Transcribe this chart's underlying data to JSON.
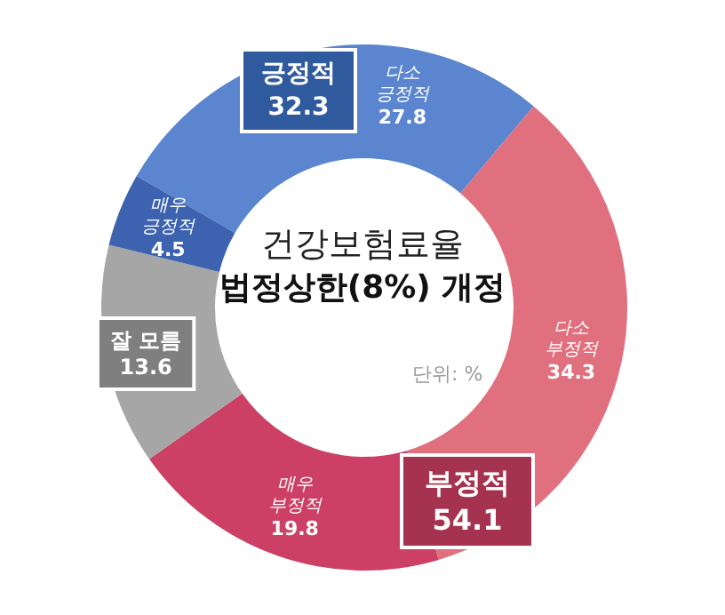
{
  "chart_data": {
    "type": "donut",
    "title": "건강보험료율 법정상한(8%) 개정",
    "categories": [
      "다소 긍정적",
      "다소 부정적",
      "매우 부정적",
      "잘 모름",
      "매우 긍정적"
    ],
    "values": [
      27.8,
      34.3,
      19.8,
      13.6,
      4.5
    ],
    "colors": [
      "#5b86cf",
      "#e0707e",
      "#cc4065",
      "#a6a6a6",
      "#3d63b0"
    ],
    "data_labels": true,
    "legend": false,
    "annotations": [
      "긍정적 32.3",
      "부정적 54.1",
      "단위: %"
    ]
  }
}
